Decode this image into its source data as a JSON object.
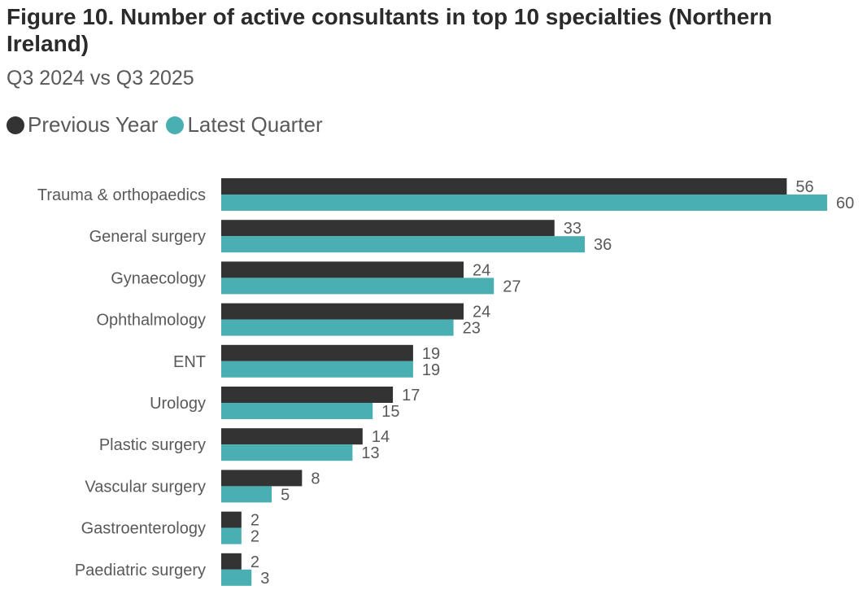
{
  "title": "Figure 10. Number of active consultants in top 10 specialties (Northern Ireland)",
  "subtitle": "Q3 2024 vs Q3 2025",
  "colors": {
    "previous": "#333333",
    "latest": "#4aafb2",
    "text": "#595959"
  },
  "chart_data": {
    "type": "bar",
    "orientation": "horizontal",
    "title": "Figure 10. Number of active consultants in top 10 specialties (Northern Ireland)",
    "subtitle": "Q3 2024 vs Q3 2025",
    "legend_position": "top-left",
    "grid": false,
    "xlim": [
      0,
      60
    ],
    "categories": [
      "Trauma & orthopaedics",
      "General surgery",
      "Gynaecology",
      "Ophthalmology",
      "ENT",
      "Urology",
      "Plastic surgery",
      "Vascular surgery",
      "Gastroenterology",
      "Paediatric surgery"
    ],
    "series": [
      {
        "name": "Previous Year",
        "color": "#333333",
        "values": [
          56,
          33,
          24,
          24,
          19,
          17,
          14,
          8,
          2,
          2
        ]
      },
      {
        "name": "Latest Quarter",
        "color": "#4aafb2",
        "values": [
          60,
          36,
          27,
          23,
          19,
          15,
          13,
          5,
          2,
          3
        ]
      }
    ]
  }
}
